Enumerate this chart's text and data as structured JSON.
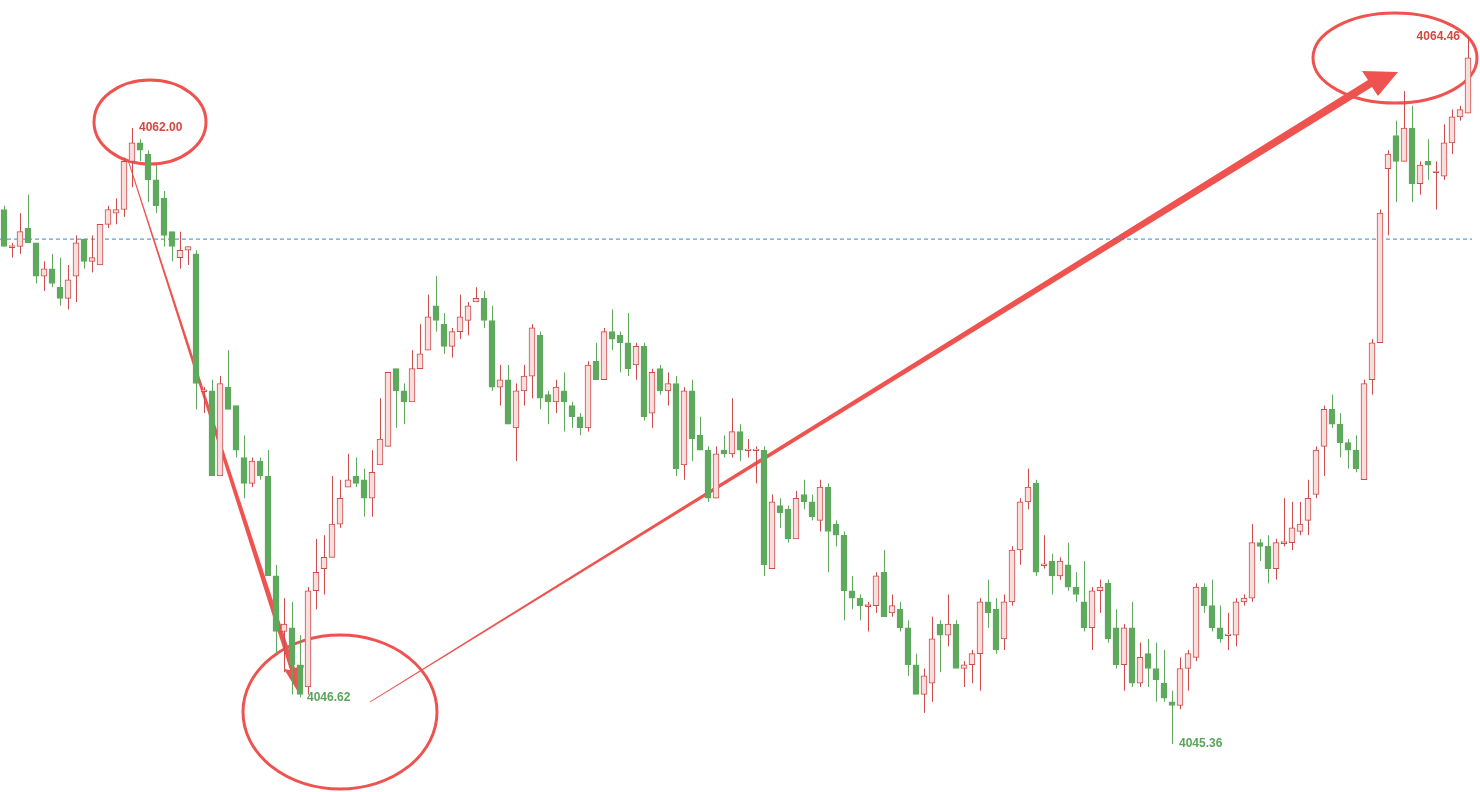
{
  "chart_data": {
    "type": "candlestick",
    "tick_labels": false,
    "categories": [
      null,
      null,
      null,
      null,
      null,
      null,
      null,
      null,
      null,
      null,
      null,
      null,
      null,
      null,
      null,
      null,
      null,
      null,
      null,
      null,
      null,
      null,
      null,
      null,
      null,
      null,
      null,
      null,
      null,
      null,
      null,
      null,
      null,
      null,
      null,
      null,
      null,
      null,
      null,
      null,
      null,
      null,
      null,
      null,
      null,
      null,
      null,
      null,
      null,
      null,
      null,
      null,
      null,
      null,
      null,
      null,
      null,
      null,
      null,
      null,
      null,
      null,
      null,
      null,
      null,
      null,
      null,
      null,
      null,
      null,
      null,
      null,
      null,
      null,
      null,
      null,
      null,
      null,
      null,
      null,
      null,
      null,
      null,
      null,
      null,
      null,
      null,
      null,
      null,
      null,
      null,
      null,
      null,
      null,
      null,
      null,
      null,
      null,
      null,
      null,
      null,
      null,
      null,
      null,
      null,
      null,
      null,
      null,
      null,
      null,
      null,
      null,
      null,
      null,
      null,
      null,
      null,
      null,
      null,
      null,
      null,
      null,
      null,
      null,
      null,
      null,
      null,
      null,
      null,
      null,
      null,
      null,
      null,
      null,
      null,
      null,
      null,
      null,
      null,
      null,
      null,
      null,
      null,
      null,
      null,
      null,
      null,
      null,
      null,
      null,
      null,
      null,
      null,
      null,
      null,
      null,
      null,
      null,
      null,
      null,
      null,
      null,
      null,
      null,
      null,
      null,
      null,
      null,
      null,
      null,
      null,
      null,
      null,
      null,
      null,
      null,
      null,
      null,
      null,
      null,
      null,
      null,
      null,
      null
    ],
    "ohlc": [
      [
        4059.8,
        4059.9,
        4058.8,
        4058.8
      ],
      [
        4058.8,
        4058.9,
        4058.5,
        4058.8
      ],
      [
        4058.8,
        4059.7,
        4058.6,
        4059.2
      ],
      [
        4059.3,
        4060.2,
        4058.9,
        4058.9
      ],
      [
        4058.9,
        4058.9,
        4057.8,
        4058.0
      ],
      [
        4058.0,
        4058.4,
        4057.6,
        4058.2
      ],
      [
        4058.2,
        4058.6,
        4057.7,
        4057.8
      ],
      [
        4057.7,
        4058.5,
        4057.2,
        4057.4
      ],
      [
        4057.4,
        4058.3,
        4057.1,
        4057.9
      ],
      [
        4058.0,
        4059.1,
        4057.3,
        4058.9
      ],
      [
        4059.0,
        4059.0,
        4058.2,
        4058.4
      ],
      [
        4058.4,
        4059.1,
        4058.1,
        4058.5
      ],
      [
        4058.3,
        4059.4,
        4058.3,
        4059.4
      ],
      [
        4059.4,
        4059.9,
        4059.3,
        4059.8
      ],
      [
        4059.7,
        4060.1,
        4059.4,
        4059.8
      ],
      [
        4059.8,
        4061.2,
        4059.6,
        4061.1
      ],
      [
        4061.1,
        4062.0,
        4060.4,
        4061.6
      ],
      [
        4061.6,
        4061.7,
        4061.1,
        4061.4
      ],
      [
        4061.3,
        4061.4,
        4060.0,
        4060.6
      ],
      [
        4060.6,
        4061.0,
        4059.7,
        4059.9
      ],
      [
        4060.1,
        4060.3,
        4058.8,
        4059.1
      ],
      [
        4059.2,
        4059.2,
        4058.4,
        4058.8
      ],
      [
        4058.5,
        4059.2,
        4058.2,
        4058.7
      ],
      [
        4058.7,
        4058.8,
        4058.3,
        4058.8
      ],
      [
        4058.6,
        4058.7,
        4054.4,
        4055.1
      ],
      [
        4054.9,
        4055.0,
        4054.3,
        4054.9
      ],
      [
        4054.9,
        4055.2,
        4052.6,
        4052.6
      ],
      [
        4052.6,
        4055.3,
        4052.6,
        4055.1
      ],
      [
        4055.0,
        4056.0,
        4054.4,
        4054.4
      ],
      [
        4054.5,
        4054.5,
        4053.1,
        4053.3
      ],
      [
        4053.1,
        4053.7,
        4052.0,
        4052.4
      ],
      [
        4052.4,
        4053.1,
        4052.3,
        4053.0
      ],
      [
        4053.0,
        4053.1,
        4052.5,
        4052.6
      ],
      [
        4052.6,
        4053.3,
        4049.9,
        4049.9
      ],
      [
        4049.9,
        4050.2,
        4047.8,
        4048.4
      ],
      [
        4048.4,
        4049.3,
        4047.3,
        4048.6
      ],
      [
        4048.5,
        4049.2,
        4046.7,
        4047.5
      ],
      [
        4047.5,
        4048.3,
        4046.62,
        4046.7
      ],
      [
        4046.9,
        4049.6,
        4046.7,
        4049.5
      ],
      [
        4049.5,
        4050.9,
        4049.0,
        4050.0
      ],
      [
        4050.1,
        4051.0,
        4049.4,
        4050.4
      ],
      [
        4050.4,
        4052.6,
        4050.4,
        4051.3
      ],
      [
        4051.3,
        4052.5,
        4051.2,
        4052.0
      ],
      [
        4052.3,
        4053.2,
        4052.3,
        4052.5
      ],
      [
        4052.6,
        4053.1,
        4052.3,
        4052.4
      ],
      [
        4052.5,
        4052.8,
        4051.5,
        4052.0
      ],
      [
        4052.0,
        4053.3,
        4051.5,
        4052.7
      ],
      [
        4052.9,
        4054.7,
        4052.9,
        4053.6
      ],
      [
        4053.4,
        4055.4,
        4053.4,
        4055.4
      ],
      [
        4055.5,
        4055.5,
        4053.9,
        4054.9
      ],
      [
        4054.9,
        4055.1,
        4054.0,
        4054.6
      ],
      [
        4054.6,
        4056.0,
        4054.6,
        4055.5
      ],
      [
        4055.5,
        4056.7,
        4055.5,
        4055.9
      ],
      [
        4056.0,
        4057.5,
        4056.0,
        4056.9
      ],
      [
        4057.2,
        4058.0,
        4056.5,
        4056.8
      ],
      [
        4056.7,
        4057.0,
        4055.9,
        4056.1
      ],
      [
        4056.1,
        4056.6,
        4055.8,
        4056.5
      ],
      [
        4056.5,
        4057.5,
        4056.3,
        4056.9
      ],
      [
        4056.8,
        4057.3,
        4056.4,
        4057.2
      ],
      [
        4057.3,
        4057.7,
        4057.3,
        4057.4
      ],
      [
        4057.4,
        4057.6,
        4056.6,
        4056.8
      ],
      [
        4056.8,
        4057.2,
        4054.9,
        4055.0
      ],
      [
        4055.0,
        4055.6,
        4054.5,
        4055.2
      ],
      [
        4055.2,
        4055.6,
        4054.0,
        4054.0
      ],
      [
        4053.9,
        4055.1,
        4053.0,
        4054.9
      ],
      [
        4054.9,
        4055.6,
        4054.5,
        4055.3
      ],
      [
        4055.3,
        4056.7,
        4054.7,
        4056.6
      ],
      [
        4056.4,
        4056.5,
        4054.4,
        4054.7
      ],
      [
        4054.8,
        4054.9,
        4054.0,
        4054.6
      ],
      [
        4054.6,
        4055.2,
        4054.3,
        4055.0
      ],
      [
        4054.9,
        4055.4,
        4053.8,
        4054.6
      ],
      [
        4054.5,
        4054.6,
        4053.9,
        4054.2
      ],
      [
        4054.2,
        4054.3,
        4053.7,
        4053.9
      ],
      [
        4053.9,
        4055.7,
        4053.8,
        4055.6
      ],
      [
        4055.7,
        4056.2,
        4055.2,
        4055.2
      ],
      [
        4055.2,
        4056.6,
        4055.2,
        4056.5
      ],
      [
        4056.5,
        4057.1,
        4056.0,
        4056.3
      ],
      [
        4056.4,
        4056.5,
        4055.4,
        4056.2
      ],
      [
        4056.2,
        4057.0,
        4055.3,
        4055.5
      ],
      [
        4055.6,
        4056.2,
        4055.2,
        4056.1
      ],
      [
        4056.1,
        4056.2,
        4054.1,
        4054.2
      ],
      [
        4054.3,
        4055.5,
        4053.9,
        4055.4
      ],
      [
        4055.5,
        4055.6,
        4054.8,
        4054.9
      ],
      [
        4054.9,
        4055.4,
        4054.5,
        4055.1
      ],
      [
        4055.1,
        4055.3,
        4052.6,
        4052.8
      ],
      [
        4052.9,
        4055.0,
        4052.5,
        4054.9
      ],
      [
        4054.9,
        4055.2,
        4053.0,
        4053.6
      ],
      [
        4053.7,
        4054.2,
        4053.3,
        4053.3
      ],
      [
        4053.3,
        4053.4,
        4051.9,
        4052.0
      ],
      [
        4052.0,
        4053.4,
        4052.0,
        4053.2
      ],
      [
        4053.3,
        4053.7,
        4053.1,
        4053.2
      ],
      [
        4053.2,
        4054.7,
        4053.1,
        4053.8
      ],
      [
        4053.8,
        4054.0,
        4053.0,
        4053.3
      ],
      [
        4053.3,
        4053.6,
        4053.1,
        4053.3
      ],
      [
        4053.3,
        4053.4,
        4052.4,
        4053.3
      ],
      [
        4053.3,
        4053.4,
        4049.9,
        4050.2
      ],
      [
        4050.1,
        4052.1,
        4050.1,
        4051.9
      ],
      [
        4051.8,
        4052.0,
        4051.2,
        4051.6
      ],
      [
        4051.7,
        4051.8,
        4050.8,
        4050.9
      ],
      [
        4050.9,
        4052.2,
        4050.9,
        4052.0
      ],
      [
        4052.1,
        4052.5,
        4051.7,
        4051.9
      ],
      [
        4051.9,
        4052.1,
        4051.4,
        4051.5
      ],
      [
        4051.4,
        4052.5,
        4051.1,
        4052.3
      ],
      [
        4052.3,
        4052.4,
        4050.0,
        4051.1
      ],
      [
        4051.3,
        4051.4,
        4050.7,
        4051.0
      ],
      [
        4051.0,
        4051.1,
        4048.7,
        4049.5
      ],
      [
        4049.5,
        4049.9,
        4049.0,
        4049.3
      ],
      [
        4049.3,
        4049.4,
        4048.7,
        4049.1
      ],
      [
        4049.1,
        4049.2,
        4048.4,
        4049.1
      ],
      [
        4049.1,
        4050.0,
        4048.9,
        4049.9
      ],
      [
        4050.0,
        4050.6,
        4048.8,
        4048.8
      ],
      [
        4048.9,
        4049.4,
        4048.8,
        4049.1
      ],
      [
        4049.0,
        4049.2,
        4048.4,
        4048.5
      ],
      [
        4048.5,
        4048.7,
        4047.2,
        4047.5
      ],
      [
        4047.5,
        4047.8,
        4046.7,
        4046.7
      ],
      [
        4046.7,
        4047.4,
        4046.2,
        4047.2
      ],
      [
        4047.0,
        4048.8,
        4046.5,
        4048.2
      ],
      [
        4048.6,
        4048.7,
        4047.3,
        4048.3
      ],
      [
        4048.3,
        4049.4,
        4048.0,
        4048.6
      ],
      [
        4048.6,
        4048.7,
        4047.4,
        4047.4
      ],
      [
        4047.4,
        4047.6,
        4046.9,
        4047.5
      ],
      [
        4047.5,
        4047.9,
        4047.0,
        4047.8
      ],
      [
        4047.8,
        4049.3,
        4046.8,
        4049.2
      ],
      [
        4049.2,
        4049.8,
        4048.5,
        4048.9
      ],
      [
        4049.0,
        4049.3,
        4047.8,
        4047.9
      ],
      [
        4048.2,
        4049.4,
        4047.9,
        4049.2
      ],
      [
        4049.2,
        4050.7,
        4049.1,
        4050.6
      ],
      [
        4050.6,
        4052.0,
        4050.2,
        4051.9
      ],
      [
        4051.9,
        4052.8,
        4051.7,
        4052.3
      ],
      [
        4052.4,
        4052.5,
        4049.9,
        4050.0
      ],
      [
        4050.2,
        4051.0,
        4050.1,
        4050.2
      ],
      [
        4050.3,
        4050.5,
        4049.4,
        4049.9
      ],
      [
        4049.9,
        4050.4,
        4049.8,
        4050.3
      ],
      [
        4050.2,
        4050.8,
        4049.5,
        4049.6
      ],
      [
        4049.6,
        4050.0,
        4049.2,
        4049.4
      ],
      [
        4049.2,
        4050.3,
        4048.4,
        4048.5
      ],
      [
        4048.5,
        4049.6,
        4047.9,
        4049.5
      ],
      [
        4049.5,
        4049.8,
        4048.9,
        4049.6
      ],
      [
        4049.7,
        4049.8,
        4048.1,
        4048.2
      ],
      [
        4048.5,
        4049.0,
        4047.4,
        4047.5
      ],
      [
        4047.5,
        4048.6,
        4046.8,
        4048.5
      ],
      [
        4048.5,
        4049.2,
        4046.9,
        4047.0
      ],
      [
        4047.0,
        4048.1,
        4046.9,
        4047.7
      ],
      [
        4047.8,
        4048.2,
        4046.9,
        4047.4
      ],
      [
        4047.4,
        4048.1,
        4046.5,
        4047.1
      ],
      [
        4047.0,
        4047.9,
        4046.5,
        4046.6
      ],
      [
        4046.5,
        4046.8,
        4045.36,
        4046.4
      ],
      [
        4046.4,
        4047.7,
        4046.3,
        4047.4
      ],
      [
        4047.4,
        4047.9,
        4046.8,
        4047.8
      ],
      [
        4047.7,
        4049.7,
        4047.6,
        4049.6
      ],
      [
        4049.6,
        4049.7,
        4048.9,
        4049.1
      ],
      [
        4049.1,
        4049.8,
        4048.4,
        4048.5
      ],
      [
        4048.5,
        4049.1,
        4048.1,
        4048.2
      ],
      [
        4048.3,
        4048.9,
        4047.9,
        4048.3
      ],
      [
        4048.3,
        4049.3,
        4048.0,
        4049.2
      ],
      [
        4049.2,
        4049.4,
        4049.1,
        4049.3
      ],
      [
        4049.3,
        4051.3,
        4049.2,
        4050.8
      ],
      [
        4050.8,
        4050.9,
        4050.3,
        4050.7
      ],
      [
        4050.7,
        4051.0,
        4049.7,
        4050.1
      ],
      [
        4050.1,
        4050.9,
        4049.8,
        4050.8
      ],
      [
        4050.8,
        4052.0,
        4050.7,
        4050.8
      ],
      [
        4050.8,
        4051.9,
        4050.6,
        4051.2
      ],
      [
        4051.1,
        4051.9,
        4051.0,
        4051.3
      ],
      [
        4051.4,
        4052.5,
        4051.0,
        4052.0
      ],
      [
        4052.1,
        4053.4,
        4052.0,
        4053.3
      ],
      [
        4053.4,
        4054.5,
        4052.6,
        4054.4
      ],
      [
        4054.4,
        4054.8,
        4053.9,
        4054.0
      ],
      [
        4054.0,
        4054.3,
        4053.1,
        4053.5
      ],
      [
        4053.5,
        4053.6,
        4052.8,
        4053.3
      ],
      [
        4053.3,
        4053.7,
        4052.7,
        4052.8
      ],
      [
        4052.5,
        4055.2,
        4052.5,
        4055.1
      ],
      [
        4055.2,
        4056.3,
        4054.8,
        4056.2
      ],
      [
        4056.2,
        4059.8,
        4056.2,
        4059.7
      ],
      [
        4060.9,
        4061.4,
        4059.1,
        4061.3
      ],
      [
        4061.8,
        4062.2,
        4060.0,
        4061.1
      ],
      [
        4061.1,
        4063.0,
        4061.1,
        4062.0
      ],
      [
        4062.0,
        4062.6,
        4060.0,
        4060.5
      ],
      [
        4060.5,
        4061.1,
        4060.2,
        4061.0
      ],
      [
        4061.1,
        4061.7,
        4060.6,
        4061.0
      ],
      [
        4060.8,
        4061.1,
        4059.8,
        4060.8
      ],
      [
        4060.7,
        4062.1,
        4060.6,
        4061.6
      ],
      [
        4061.6,
        4062.5,
        4061.3,
        4062.3
      ],
      [
        4062.3,
        4062.6,
        4062.2,
        4062.5
      ],
      [
        4062.4,
        4064.46,
        4062.4,
        4063.9
      ]
    ],
    "ref_lines": [
      {
        "axis": "y",
        "value": 4059.0,
        "color": "#3d85c6",
        "line_style": "dashed"
      }
    ],
    "annotations": [
      "4062.00",
      "4046.62",
      "4045.36",
      "4064.46"
    ]
  }
}
